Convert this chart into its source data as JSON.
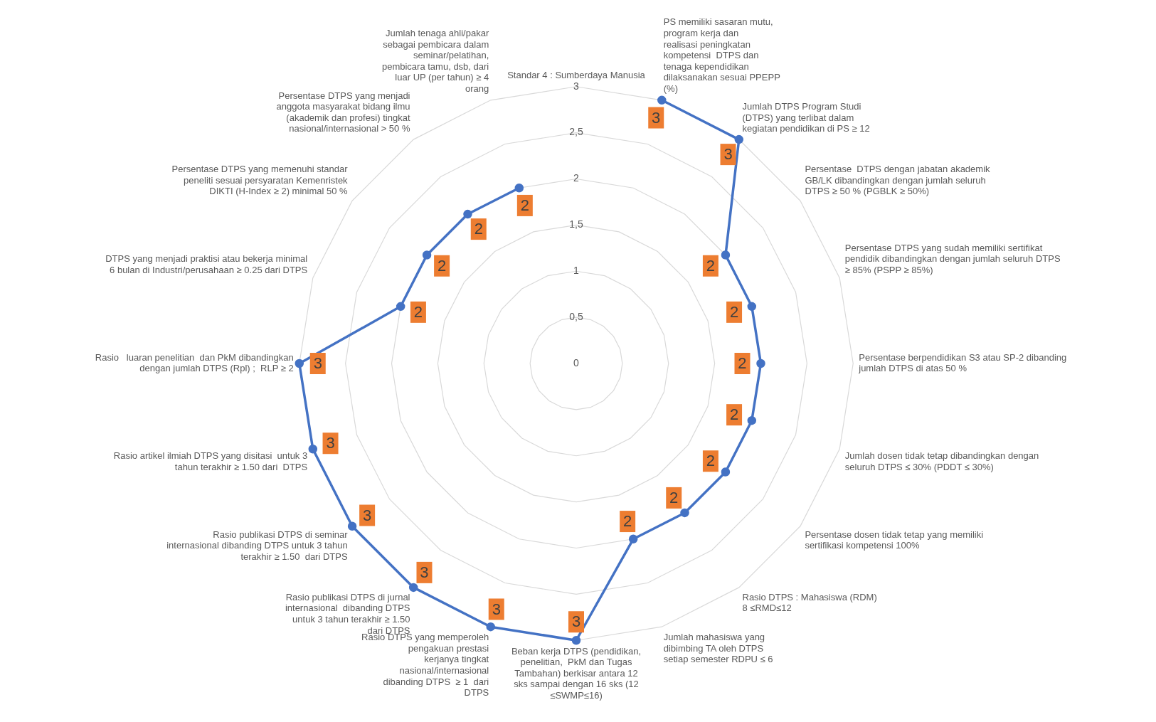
{
  "chart_data": {
    "type": "radar",
    "categories": [
      "Standar 4 : Sumberdaya Manusia",
      "PS memiliki sasaran mutu, program kerja dan realisasi peningkatan kompetensi  DTPS dan tenaga kependidikan dilaksanakan sesuai PPEPP (%)",
      "Jumlah DTPS Program Studi (DTPS) yang terlibat dalam kegiatan pendidikan di PS ≥ 12",
      "Persentase  DTPS dengan jabatan akademik GB/LK dibandingkan dengan jumlah seluruh DTPS ≥ 50 % (PGBLK ≥ 50%)",
      "Persentase DTPS yang sudah memiliki sertifikat pendidik dibandingkan dengan jumlah seluruh DTPS ≥ 85% (PSPP ≥ 85%)",
      "Persentase berpendidikan S3 atau SP-2 dibanding jumlah DTPS di atas 50 %",
      "Jumlah dosen tidak tetap dibandingkan dengan seluruh DTPS ≤ 30% (PDDT ≤ 30%)",
      "Persentase dosen tidak tetap yang memiliki sertifikasi kompetensi 100%",
      "Rasio DTPS : Mahasiswa (RDM)  8 ≤RMD≤12",
      "Jumlah mahasiswa yang dibimbing TA oleh DTPS setiap semester RDPU ≤ 6",
      "Beban kerja DTPS (pendidikan, penelitian,  PkM dan Tugas Tambahan) berkisar antara 12 sks sampai dengan 16 sks (12 ≤SWMP≤16)",
      "Rasio DTPS yang memperoleh pengakuan prestasi kerjanya tingkat nasional/internasional dibanding DTPS  ≥ 1  dari DTPS",
      "Rasio publikasi DTPS di jurnal internasional  dibanding DTPS untuk 3 tahun terakhir ≥ 1.50 dari DTPS",
      "Rasio publikasi DTPS di seminar internasional dibanding DTPS untuk 3 tahun terakhir ≥ 1.50  dari DTPS",
      "Rasio artikel ilmiah DTPS yang disitasi  untuk 3 tahun terakhir ≥ 1.50 dari  DTPS",
      "Rasio   luaran penelitian  dan PkM dibandingkan dengan jumlah DTPS (Rpl) ;  RLP ≥ 2",
      "DTPS yang menjadi praktisi atau bekerja minimal 6 bulan di Industri/perusahaan ≥ 0.25 dari DTPS",
      "Persentase DTPS yang memenuhi standar peneliti sesuai persyaratan Kemenristek DIKTI (H-Index ≥ 2) minimal 50 %",
      "Persentase DTPS yang menjadi anggota masyarakat bidang ilmu (akademik dan profesi) tingkat nasional/internasional > 50 %",
      "Jumlah tenaga ahli/pakar sebagai pembicara dalam seminar/pelatihan, pembicara tamu, dsb, dari luar UP (per tahun) ≥ 4 orang"
    ],
    "series": [
      {
        "color": "#4472c4",
        "values": [
          null,
          3,
          3,
          2,
          2,
          2,
          2,
          2,
          2,
          2,
          3,
          3,
          3,
          3,
          3,
          3,
          2,
          2,
          2,
          2
        ]
      }
    ],
    "ylim": [
      0,
      3
    ],
    "yticks": [
      0,
      {
        "value": 0.5,
        "label": "0,5"
      },
      1,
      {
        "value": 1.5,
        "label": "1,5"
      },
      2,
      {
        "value": 2.5,
        "label": "2,5"
      },
      3
    ],
    "grid": true,
    "legend": false,
    "marker": "circle",
    "data_labels": true
  }
}
